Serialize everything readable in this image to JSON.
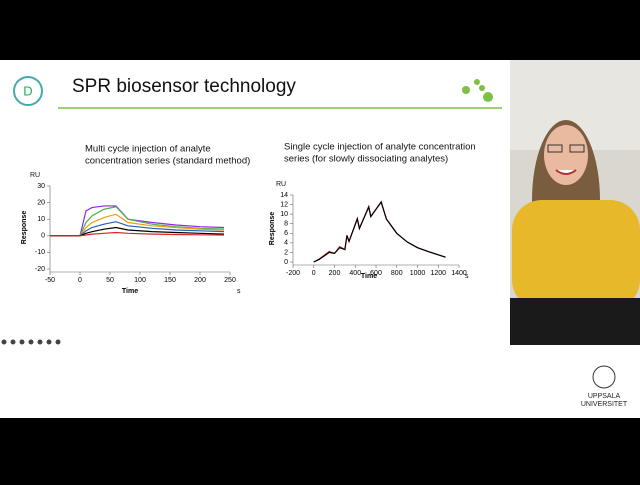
{
  "slide": {
    "title": "SPR biosensor technology",
    "logo_text": [
      "UPPSALA",
      "UNIVERSITET"
    ]
  },
  "chart_data": [
    {
      "type": "line",
      "title": [
        "Multi cycle injection of analyte",
        "concentration series (standard method)"
      ],
      "y_unit": "RU",
      "ylabel": "Response",
      "xlabel": "Time",
      "x_unit": "s",
      "x": [
        -50,
        0,
        10,
        20,
        40,
        60,
        80,
        120,
        160,
        200,
        240
      ],
      "series": [
        {
          "color": "#8a2be2",
          "values": [
            0,
            0,
            15,
            17,
            18,
            18,
            10,
            8,
            6.5,
            5.5,
            5
          ]
        },
        {
          "color": "#4caf50",
          "values": [
            0,
            0,
            8,
            12,
            16,
            17.5,
            10,
            7,
            5.5,
            4.5,
            4
          ]
        },
        {
          "color": "#f39c12",
          "values": [
            0,
            0,
            5,
            8,
            11,
            13,
            8,
            6,
            5,
            4,
            3.5
          ]
        },
        {
          "color": "#1f5fbf",
          "values": [
            0,
            0,
            3,
            5,
            7,
            8.5,
            6,
            4.5,
            3.5,
            3,
            2.5
          ]
        },
        {
          "color": "#000000",
          "values": [
            0,
            0,
            1.5,
            2.5,
            4,
            5,
            3.5,
            2.5,
            2,
            1.5,
            1
          ]
        },
        {
          "color": "#d62728",
          "values": [
            0,
            0,
            0.5,
            1,
            1.5,
            2,
            1.5,
            1,
            0.8,
            0.6,
            0.5
          ]
        }
      ],
      "xlim": [
        -50,
        250
      ],
      "xticks": [
        -50,
        0,
        50,
        100,
        150,
        200,
        250
      ],
      "ylim": [
        -20,
        30
      ],
      "yticks": [
        -20,
        -10,
        0,
        10,
        20,
        30
      ]
    },
    {
      "type": "line",
      "title": [
        "Single cycle injection of analyte concentration",
        "series (for slowly dissociating analytes)"
      ],
      "y_unit": "RU",
      "ylabel": "Response",
      "xlabel": "Time",
      "x_unit": "s",
      "x": [
        0,
        50,
        150,
        200,
        250,
        300,
        320,
        340,
        420,
        440,
        530,
        550,
        650,
        700,
        800,
        900,
        1000,
        1100,
        1200,
        1270
      ],
      "series": [
        {
          "color": "#d62728",
          "values": [
            0,
            0.6,
            2.2,
            1.8,
            3.2,
            2.6,
            5.6,
            4.3,
            9.1,
            7,
            11.6,
            9.5,
            12.6,
            9,
            6,
            4.2,
            3,
            2.2,
            1.5,
            1
          ]
        },
        {
          "color": "#000000",
          "values": [
            0,
            0.5,
            2,
            1.8,
            3,
            2.6,
            5.5,
            4.3,
            9,
            7,
            11.5,
            9.5,
            12.5,
            9,
            6,
            4.2,
            3,
            2.2,
            1.5,
            1
          ]
        }
      ],
      "xlim": [
        -200,
        1400
      ],
      "xticks": [
        -200,
        0,
        200,
        400,
        600,
        800,
        1000,
        1200,
        1400
      ],
      "ylim": [
        0,
        14
      ],
      "yticks": [
        0,
        2,
        4,
        6,
        8,
        10,
        12,
        14
      ]
    }
  ]
}
